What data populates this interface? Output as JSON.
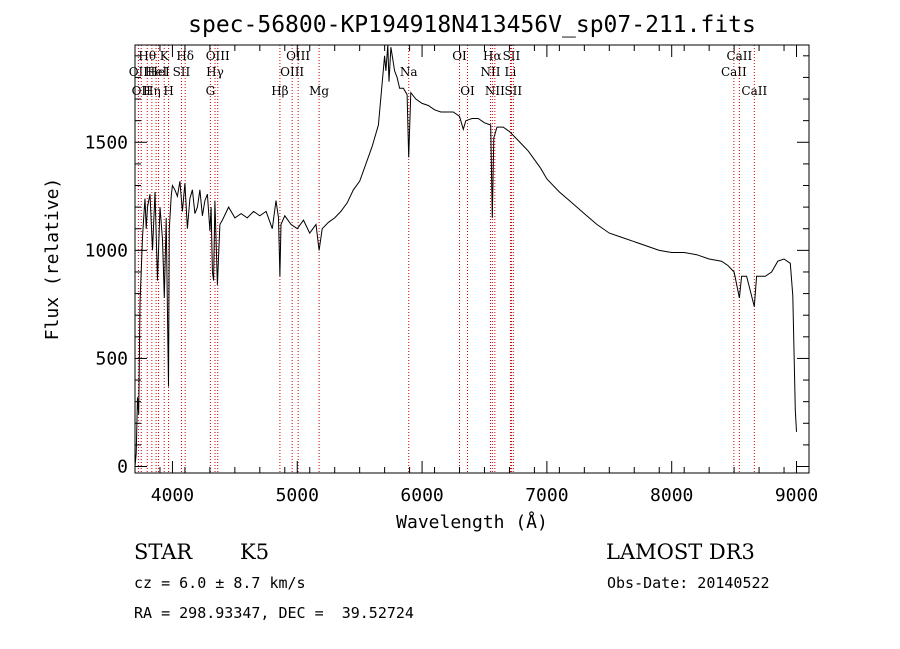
{
  "chart_data": {
    "type": "line",
    "title": "spec-56800-KP194918N413456V_sp07-211.fits",
    "xlabel": "Wavelength (Å)",
    "ylabel": "Flux (relative)",
    "xlim": [
      3700,
      9100
    ],
    "ylim": [
      -30,
      1950
    ],
    "x_ticks": [
      4000,
      5000,
      6000,
      7000,
      8000,
      9000
    ],
    "x_tick_labels": [
      "4000",
      "5000",
      "6000",
      "7000",
      "8000",
      "9000"
    ],
    "y_ticks": [
      0,
      500,
      1000,
      1500
    ],
    "y_tick_labels": [
      "0",
      "500",
      "1000",
      "1500"
    ],
    "series": [
      {
        "name": "flux",
        "color": "#000000",
        "x": [
          3700,
          3710,
          3720,
          3730,
          3740,
          3750,
          3760,
          3770,
          3780,
          3790,
          3800,
          3820,
          3840,
          3860,
          3880,
          3900,
          3920,
          3935,
          3950,
          3960,
          3968,
          3975,
          3990,
          4000,
          4020,
          4040,
          4060,
          4080,
          4100,
          4120,
          4140,
          4160,
          4180,
          4200,
          4220,
          4240,
          4260,
          4280,
          4300,
          4310,
          4320,
          4330,
          4340,
          4360,
          4380,
          4400,
          4450,
          4500,
          4550,
          4600,
          4650,
          4700,
          4750,
          4800,
          4830,
          4850,
          4861,
          4870,
          4900,
          4950,
          5000,
          5050,
          5100,
          5150,
          5175,
          5200,
          5250,
          5300,
          5350,
          5400,
          5450,
          5500,
          5550,
          5600,
          5650,
          5700,
          5710,
          5725,
          5735,
          5750,
          5780,
          5800,
          5820,
          5850,
          5880,
          5893,
          5910,
          5950,
          6000,
          6050,
          6100,
          6150,
          6200,
          6250,
          6300,
          6330,
          6350,
          6400,
          6450,
          6500,
          6550,
          6563,
          6575,
          6600,
          6650,
          6700,
          6750,
          6800,
          6850,
          6900,
          6950,
          7000,
          7100,
          7200,
          7300,
          7400,
          7500,
          7600,
          7700,
          7800,
          7900,
          8000,
          8100,
          8200,
          8300,
          8400,
          8450,
          8500,
          8542,
          8560,
          8600,
          8662,
          8680,
          8700,
          8750,
          8800,
          8850,
          8900,
          8950,
          8970,
          8990,
          9000
        ],
        "values": [
          0,
          60,
          320,
          240,
          760,
          900,
          1060,
          1150,
          1240,
          1100,
          1200,
          1260,
          1000,
          1270,
          860,
          1200,
          1050,
          780,
          1150,
          700,
          370,
          1100,
          1250,
          1300,
          1280,
          1250,
          1320,
          1180,
          1310,
          1100,
          1240,
          1280,
          1170,
          1200,
          1280,
          1160,
          1230,
          1260,
          1090,
          1200,
          900,
          860,
          1230,
          840,
          1120,
          1140,
          1200,
          1150,
          1170,
          1150,
          1180,
          1160,
          1180,
          1100,
          1230,
          1150,
          880,
          1120,
          1160,
          1120,
          1100,
          1140,
          1080,
          1120,
          1000,
          1100,
          1130,
          1150,
          1180,
          1220,
          1280,
          1320,
          1400,
          1480,
          1580,
          1900,
          1830,
          1950,
          1780,
          1940,
          1830,
          1800,
          1750,
          1750,
          1720,
          1430,
          1730,
          1700,
          1680,
          1670,
          1650,
          1640,
          1640,
          1640,
          1620,
          1560,
          1600,
          1610,
          1610,
          1590,
          1580,
          1150,
          1520,
          1570,
          1570,
          1550,
          1520,
          1490,
          1460,
          1420,
          1380,
          1330,
          1270,
          1220,
          1170,
          1120,
          1080,
          1060,
          1040,
          1020,
          1000,
          990,
          990,
          980,
          960,
          950,
          930,
          900,
          780,
          880,
          880,
          740,
          880,
          880,
          880,
          900,
          950,
          960,
          940,
          790,
          260,
          160
        ]
      }
    ],
    "lines": [
      {
        "w": 3727,
        "labels": [
          "OII"
        ],
        "row": 1
      },
      {
        "w": 3750,
        "labels": [
          "OII"
        ],
        "row": 2
      },
      {
        "w": 3798,
        "labels": [
          "Hθ"
        ],
        "row": 0
      },
      {
        "w": 3835,
        "labels": [
          "Hη"
        ],
        "row": 2
      },
      {
        "w": 3869,
        "labels": [
          "HeI"
        ],
        "row": 1
      },
      {
        "w": 3889,
        "labels": [
          "HeI"
        ],
        "row": 1
      },
      {
        "w": 3934,
        "labels": [
          "K"
        ],
        "row": 0
      },
      {
        "w": 3969,
        "labels": [
          "H"
        ],
        "row": 2
      },
      {
        "w": 4072,
        "labels": [
          "SII"
        ],
        "row": 1
      },
      {
        "w": 4102,
        "labels": [
          "Hδ"
        ],
        "row": 0
      },
      {
        "w": 4304,
        "labels": [
          "G"
        ],
        "row": 2
      },
      {
        "w": 4341,
        "labels": [
          "Hγ"
        ],
        "row": 1
      },
      {
        "w": 4363,
        "labels": [
          "OIII"
        ],
        "row": 0
      },
      {
        "w": 4861,
        "labels": [
          "Hβ"
        ],
        "row": 2
      },
      {
        "w": 4959,
        "labels": [
          "OIII"
        ],
        "row": 1
      },
      {
        "w": 5007,
        "labels": [
          "OIII"
        ],
        "row": 0
      },
      {
        "w": 5175,
        "labels": [
          "Mg"
        ],
        "row": 2
      },
      {
        "w": 5893,
        "labels": [
          "Na"
        ],
        "row": 1
      },
      {
        "w": 6300,
        "labels": [
          "OI"
        ],
        "row": 0
      },
      {
        "w": 6364,
        "labels": [
          "OI"
        ],
        "row": 2
      },
      {
        "w": 6548,
        "labels": [
          "NII"
        ],
        "row": 1
      },
      {
        "w": 6563,
        "labels": [
          "Hα"
        ],
        "row": 0
      },
      {
        "w": 6583,
        "labels": [
          "NII"
        ],
        "row": 2
      },
      {
        "w": 6708,
        "labels": [
          "Li"
        ],
        "row": 1
      },
      {
        "w": 6716,
        "labels": [
          "SII"
        ],
        "row": 0
      },
      {
        "w": 6731,
        "labels": [
          "SII"
        ],
        "row": 2
      },
      {
        "w": 8498,
        "labels": [
          "CaII"
        ],
        "row": 1
      },
      {
        "w": 8542,
        "labels": [
          "CaII"
        ],
        "row": 0
      },
      {
        "w": 8662,
        "labels": [
          "CaII"
        ],
        "row": 2
      }
    ],
    "line_color": "#cc0000"
  },
  "info": {
    "object_class": "STAR",
    "subclass": "K5",
    "survey": "LAMOST DR3",
    "redshift_text": "cz = 6.0 ± 8.7 km/s",
    "obs_date_text": "Obs-Date: 20140522",
    "coords_text": "RA = 298.93347, DEC =  39.52724"
  }
}
